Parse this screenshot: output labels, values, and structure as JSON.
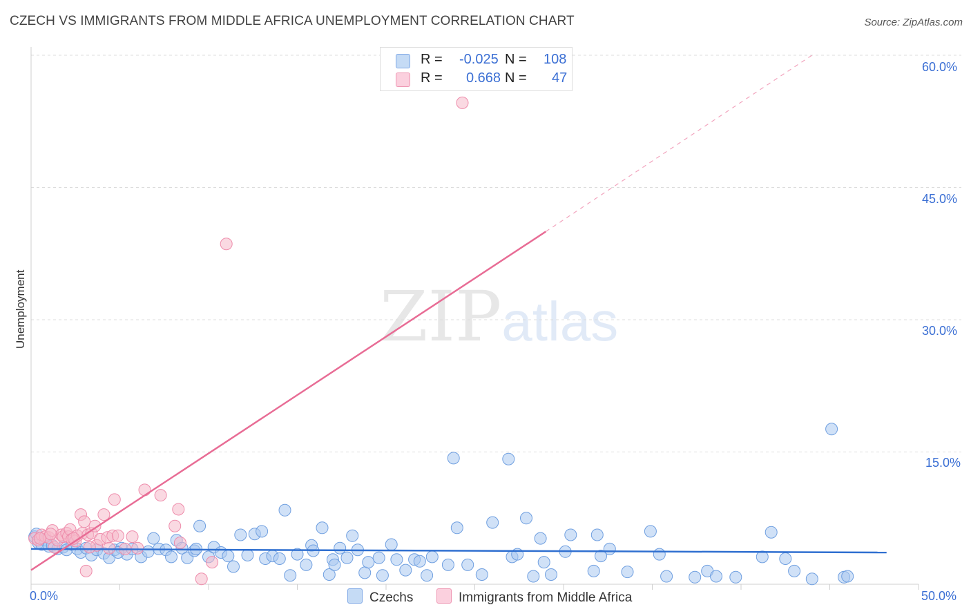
{
  "title": "CZECH VS IMMIGRANTS FROM MIDDLE AFRICA UNEMPLOYMENT CORRELATION CHART",
  "source": "Source: ZipAtlas.com",
  "watermark_zip": "ZIP",
  "watermark_atlas": "atlas",
  "legend": {
    "r_label": "R =",
    "n_label": "N =",
    "rows": [
      {
        "r": "-0.025",
        "n": "108",
        "color": "#a9c8f0"
      },
      {
        "r": "0.668",
        "n": "47",
        "color": "#f6b9cb"
      }
    ]
  },
  "chart_data": {
    "type": "scatter",
    "title": "CZECH VS IMMIGRANTS FROM MIDDLE AFRICA UNEMPLOYMENT CORRELATION CHART",
    "xlabel": "",
    "ylabel": "Unemployment",
    "xlim": [
      0,
      50
    ],
    "ylim": [
      0,
      60
    ],
    "x_tick_labels": [
      "0.0%",
      "50.0%"
    ],
    "y_ticks": [
      15,
      30,
      45,
      60
    ],
    "y_tick_labels": [
      "15.0%",
      "30.0%",
      "45.0%",
      "60.0%"
    ],
    "grid": true,
    "series": [
      {
        "name": "Czechs",
        "color": "#a9c8f0",
        "stroke": "#6f9fe0",
        "trend": {
          "x": [
            0,
            48.2
          ],
          "y": [
            4.0,
            3.6
          ],
          "color": "#2f6fd0"
        },
        "points": [
          [
            0.2,
            5.4
          ],
          [
            0.4,
            4.7
          ],
          [
            0.6,
            4.5
          ],
          [
            0.8,
            5.0
          ],
          [
            1.0,
            4.3
          ],
          [
            1.2,
            4.4
          ],
          [
            1.5,
            4.0
          ],
          [
            1.8,
            4.2
          ],
          [
            2.0,
            3.9
          ],
          [
            2.3,
            4.5
          ],
          [
            2.6,
            4.0
          ],
          [
            2.8,
            3.6
          ],
          [
            3.1,
            4.1
          ],
          [
            3.4,
            3.3
          ],
          [
            3.7,
            3.9
          ],
          [
            4.1,
            3.5
          ],
          [
            4.4,
            3.0
          ],
          [
            4.7,
            3.9
          ],
          [
            5.1,
            4.1
          ],
          [
            5.4,
            3.4
          ],
          [
            5.7,
            4.0
          ],
          [
            6.2,
            3.1
          ],
          [
            6.6,
            3.7
          ],
          [
            6.9,
            5.2
          ],
          [
            7.2,
            4.0
          ],
          [
            7.6,
            3.9
          ],
          [
            7.9,
            3.1
          ],
          [
            8.2,
            5.0
          ],
          [
            8.5,
            4.1
          ],
          [
            8.8,
            3.0
          ],
          [
            9.2,
            3.8
          ],
          [
            9.5,
            6.6
          ],
          [
            10.0,
            3.1
          ],
          [
            10.3,
            4.2
          ],
          [
            10.7,
            3.6
          ],
          [
            11.1,
            3.2
          ],
          [
            11.4,
            2.0
          ],
          [
            11.8,
            5.6
          ],
          [
            12.2,
            3.3
          ],
          [
            12.6,
            5.7
          ],
          [
            13.0,
            6.0
          ],
          [
            13.2,
            2.9
          ],
          [
            13.6,
            3.2
          ],
          [
            14.0,
            2.9
          ],
          [
            14.3,
            8.4
          ],
          [
            14.6,
            1.0
          ],
          [
            15.0,
            3.4
          ],
          [
            15.5,
            2.2
          ],
          [
            15.8,
            4.4
          ],
          [
            15.9,
            3.8
          ],
          [
            16.4,
            6.4
          ],
          [
            16.8,
            1.1
          ],
          [
            17.0,
            2.8
          ],
          [
            17.4,
            4.1
          ],
          [
            17.8,
            3.0
          ],
          [
            18.1,
            5.5
          ],
          [
            18.4,
            3.9
          ],
          [
            18.8,
            1.3
          ],
          [
            19.0,
            2.5
          ],
          [
            19.6,
            3.0
          ],
          [
            19.8,
            1.0
          ],
          [
            20.3,
            4.5
          ],
          [
            20.6,
            2.8
          ],
          [
            21.1,
            1.6
          ],
          [
            21.6,
            2.8
          ],
          [
            21.9,
            2.6
          ],
          [
            22.3,
            1.0
          ],
          [
            22.6,
            3.1
          ],
          [
            23.5,
            2.2
          ],
          [
            23.8,
            14.3
          ],
          [
            24.0,
            6.4
          ],
          [
            24.6,
            2.2
          ],
          [
            25.4,
            1.1
          ],
          [
            26.0,
            7.0
          ],
          [
            26.9,
            14.2
          ],
          [
            27.1,
            3.1
          ],
          [
            27.4,
            3.4
          ],
          [
            27.9,
            7.5
          ],
          [
            28.3,
            0.9
          ],
          [
            28.7,
            5.2
          ],
          [
            28.9,
            2.5
          ],
          [
            29.3,
            1.1
          ],
          [
            30.1,
            3.7
          ],
          [
            30.4,
            5.6
          ],
          [
            31.7,
            1.5
          ],
          [
            31.9,
            5.6
          ],
          [
            32.1,
            3.2
          ],
          [
            32.6,
            4.0
          ],
          [
            33.6,
            1.4
          ],
          [
            34.9,
            6.0
          ],
          [
            35.4,
            3.4
          ],
          [
            35.8,
            0.9
          ],
          [
            37.4,
            0.8
          ],
          [
            38.1,
            1.5
          ],
          [
            38.6,
            0.9
          ],
          [
            39.7,
            0.8
          ],
          [
            41.2,
            3.1
          ],
          [
            41.7,
            5.9
          ],
          [
            42.5,
            2.9
          ],
          [
            43.0,
            1.5
          ],
          [
            44.0,
            0.6
          ],
          [
            45.1,
            17.6
          ],
          [
            45.8,
            0.8
          ],
          [
            46.0,
            0.9
          ],
          [
            17.1,
            2.2
          ],
          [
            9.3,
            4.0
          ],
          [
            4.9,
            3.6
          ],
          [
            0.3,
            5.7
          ]
        ]
      },
      {
        "name": "Immigrants from Middle Africa",
        "color": "#f6b9cb",
        "stroke": "#ee8cab",
        "trend": {
          "x": [
            0,
            29.0
          ],
          "y": [
            1.6,
            40.0
          ],
          "color": "#e86c95"
        },
        "trend_ext": {
          "x": [
            29.0,
            44.0
          ],
          "y": [
            40.0,
            60.0
          ]
        },
        "points": [
          [
            0.2,
            5.2
          ],
          [
            0.4,
            5.0
          ],
          [
            0.6,
            5.6
          ],
          [
            0.8,
            5.4
          ],
          [
            1.0,
            5.3
          ],
          [
            1.2,
            6.1
          ],
          [
            1.3,
            4.2
          ],
          [
            1.5,
            5.0
          ],
          [
            1.7,
            5.6
          ],
          [
            1.8,
            5.4
          ],
          [
            2.0,
            5.8
          ],
          [
            2.1,
            5.4
          ],
          [
            2.2,
            6.2
          ],
          [
            2.3,
            5.1
          ],
          [
            2.5,
            4.9
          ],
          [
            2.6,
            5.5
          ],
          [
            2.8,
            7.9
          ],
          [
            2.9,
            5.8
          ],
          [
            3.0,
            7.1
          ],
          [
            3.1,
            1.5
          ],
          [
            3.2,
            5.6
          ],
          [
            3.4,
            5.8
          ],
          [
            3.6,
            6.6
          ],
          [
            3.7,
            4.4
          ],
          [
            3.9,
            5.1
          ],
          [
            4.1,
            7.9
          ],
          [
            4.3,
            5.3
          ],
          [
            4.4,
            4.1
          ],
          [
            4.6,
            5.5
          ],
          [
            4.7,
            9.6
          ],
          [
            4.9,
            5.5
          ],
          [
            5.3,
            4.0
          ],
          [
            5.7,
            5.4
          ],
          [
            6.4,
            10.7
          ],
          [
            7.3,
            10.1
          ],
          [
            8.1,
            6.6
          ],
          [
            8.3,
            8.5
          ],
          [
            8.4,
            4.7
          ],
          [
            9.6,
            0.6
          ],
          [
            10.2,
            2.5
          ],
          [
            11.0,
            38.6
          ],
          [
            24.3,
            54.6
          ],
          [
            0.5,
            5.2
          ],
          [
            1.1,
            5.7
          ],
          [
            2.4,
            5.2
          ],
          [
            3.3,
            4.2
          ],
          [
            6.0,
            4.1
          ]
        ]
      }
    ]
  },
  "bottom_legend": [
    {
      "label": "Czechs",
      "color": "#a9c8f0"
    },
    {
      "label": "Immigrants from Middle Africa",
      "color": "#f6b9cb"
    }
  ]
}
